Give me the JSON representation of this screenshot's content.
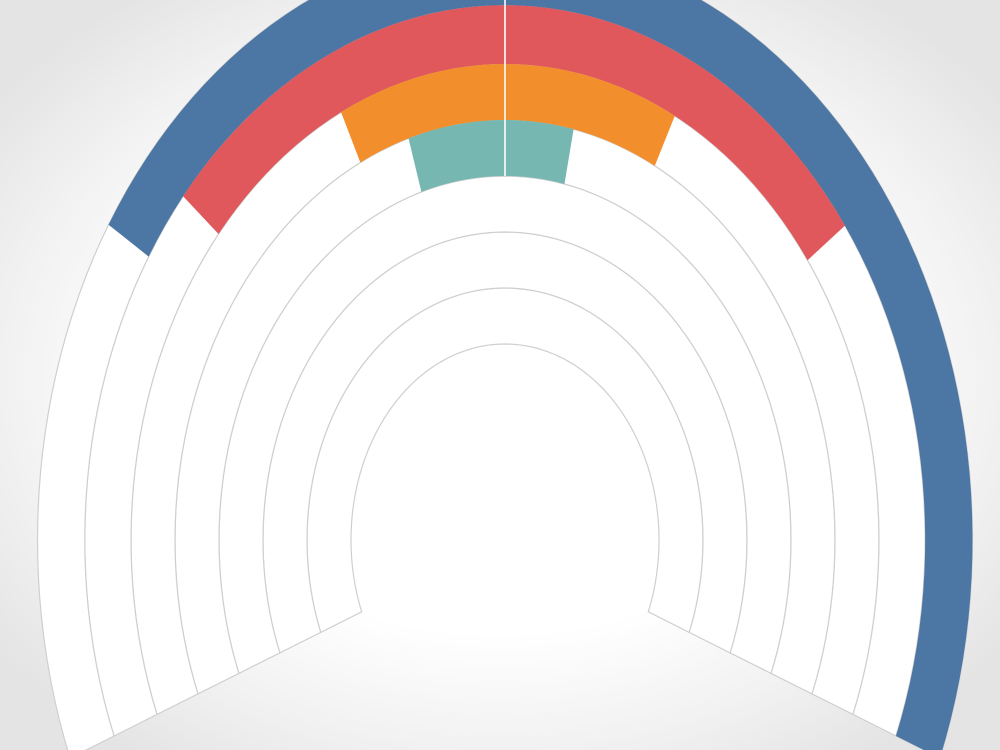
{
  "chart_data": {
    "type": "radial-bar",
    "track_start_deg": -111.5,
    "track_end_deg": 111.5,
    "track_color": "#ffffff",
    "track_stroke": "#cfcfcf",
    "divider_color": "#ffffff",
    "series": [
      {
        "color": "#4c77a5",
        "start_deg": -58,
        "end_deg": 111.5
      },
      {
        "color": "#e0585b",
        "start_deg": -50,
        "end_deg": 54
      },
      {
        "color": "#f28e2b",
        "start_deg": -26,
        "end_deg": 27
      },
      {
        "color": "#76b7b2",
        "start_deg": -17,
        "end_deg": 12
      }
    ]
  }
}
